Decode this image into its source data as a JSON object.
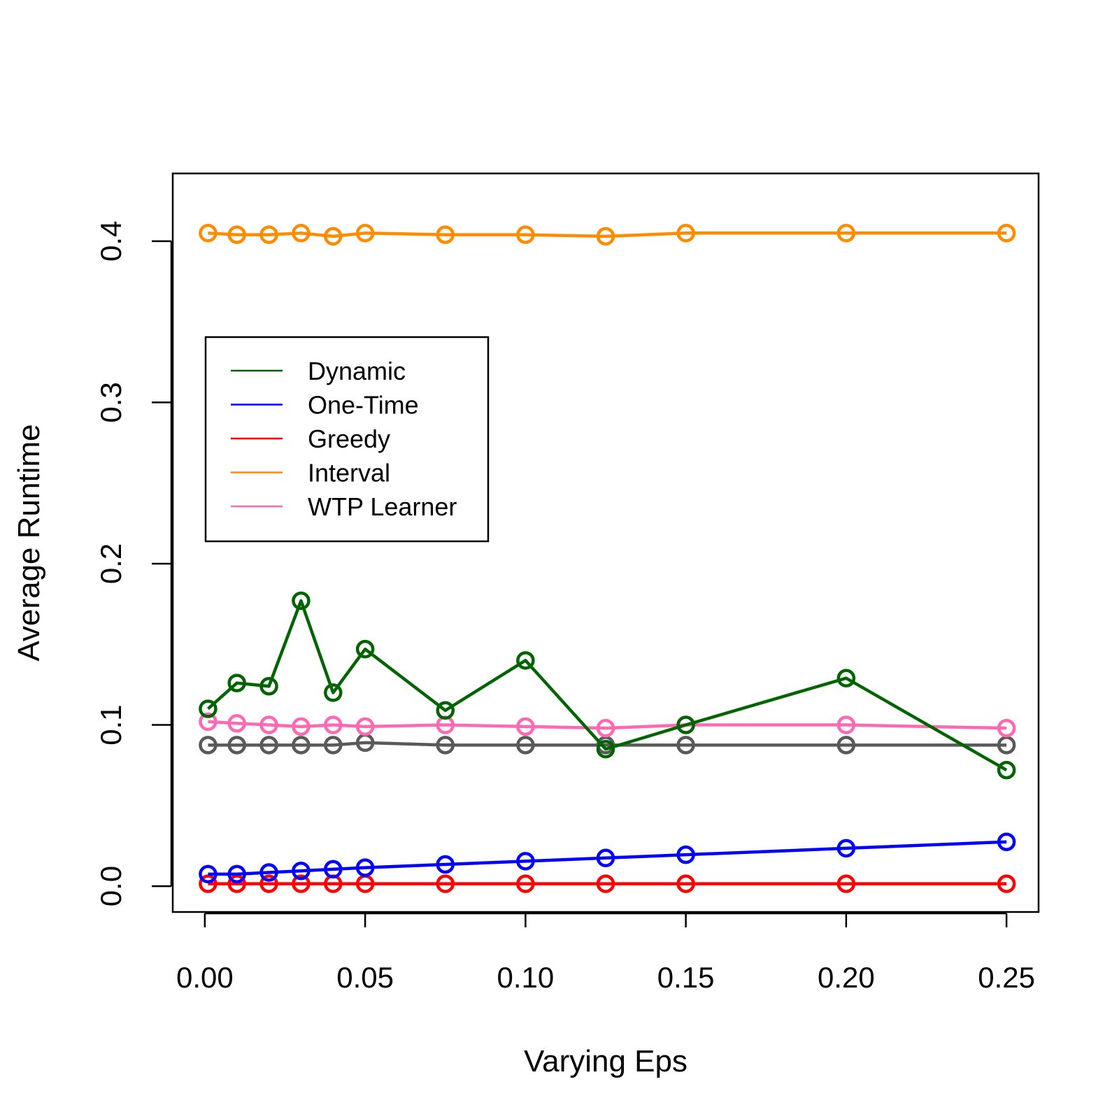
{
  "chart_data": {
    "type": "line",
    "title": "",
    "xlabel": "Varying Eps",
    "ylabel": "Average Runtime",
    "xlim": [
      -0.01,
      0.26
    ],
    "ylim": [
      -0.016,
      0.442
    ],
    "x_ticks": [
      0.0,
      0.05,
      0.1,
      0.15,
      0.2,
      0.25
    ],
    "x_tick_labels": [
      "0.00",
      "0.05",
      "0.10",
      "0.15",
      "0.20",
      "0.25"
    ],
    "y_ticks": [
      0.0,
      0.1,
      0.2,
      0.3,
      0.4
    ],
    "y_tick_labels": [
      "0.0",
      "0.1",
      "0.2",
      "0.3",
      "0.4"
    ],
    "grid": false,
    "legend_position": "left, upper-middle",
    "x": [
      0.001,
      0.01,
      0.02,
      0.03,
      0.04,
      0.05,
      0.075,
      0.1,
      0.125,
      0.15,
      0.2,
      0.25
    ],
    "series": [
      {
        "name": "Dynamic",
        "color": "#006400",
        "in_legend": true,
        "values": [
          0.11,
          0.126,
          0.124,
          0.177,
          0.12,
          0.147,
          0.109,
          0.14,
          0.085,
          0.1,
          0.129,
          0.072
        ]
      },
      {
        "name": "One-Time",
        "color": "#0000ff",
        "in_legend": true,
        "values": [
          0.0075,
          0.0075,
          0.0085,
          0.0095,
          0.0105,
          0.0115,
          0.0135,
          0.0155,
          0.0175,
          0.0195,
          0.0235,
          0.0275
        ]
      },
      {
        "name": "Greedy",
        "color": "#ff0000",
        "in_legend": true,
        "values": [
          0.0015,
          0.0015,
          0.0015,
          0.0015,
          0.0015,
          0.0015,
          0.0015,
          0.0015,
          0.0015,
          0.0015,
          0.0015,
          0.0015
        ]
      },
      {
        "name": "Interval",
        "color": "#ff8c00",
        "in_legend": true,
        "values": [
          0.405,
          0.404,
          0.404,
          0.405,
          0.403,
          0.405,
          0.404,
          0.404,
          0.403,
          0.405,
          0.405,
          0.405
        ]
      },
      {
        "name": "WTP Learner",
        "color": "#ff69b4",
        "in_legend": true,
        "values": [
          0.102,
          0.101,
          0.1,
          0.099,
          0.1,
          0.099,
          0.1,
          0.099,
          0.098,
          0.1,
          0.1,
          0.098
        ]
      },
      {
        "name": "",
        "color": "#595959",
        "in_legend": false,
        "values": [
          0.0875,
          0.0875,
          0.0875,
          0.0875,
          0.0875,
          0.089,
          0.0875,
          0.0875,
          0.0875,
          0.0875,
          0.0875,
          0.0875
        ]
      }
    ]
  }
}
